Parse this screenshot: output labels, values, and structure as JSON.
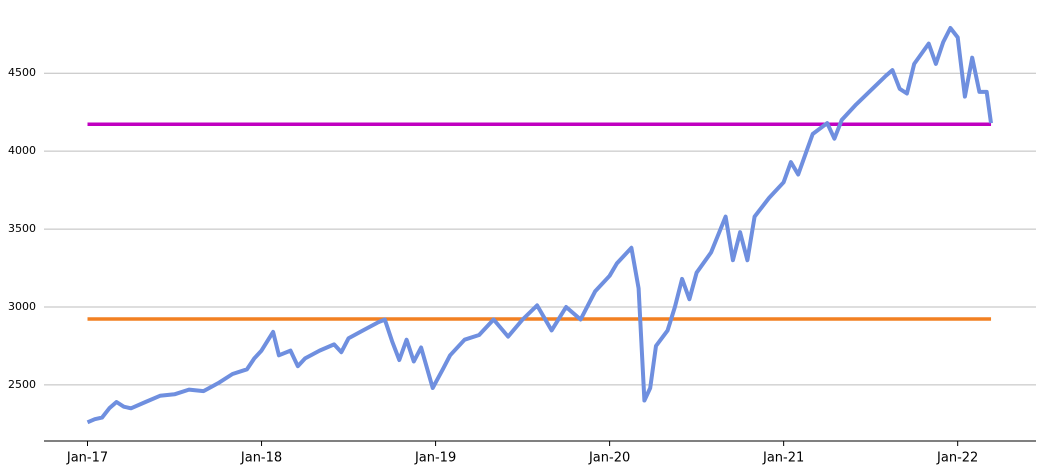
{
  "chart_data": {
    "type": "line",
    "x": [
      0,
      0.5,
      1,
      1.5,
      2,
      2.5,
      3,
      4,
      5,
      6,
      7,
      8,
      9,
      10,
      11,
      11.5,
      12,
      12.8,
      13.2,
      14,
      14.5,
      15,
      16,
      17,
      17.5,
      18,
      19,
      20,
      20.5,
      21,
      21.5,
      22,
      22.5,
      23,
      23.8,
      24.5,
      25,
      26,
      27,
      28,
      29,
      30,
      31,
      32,
      33,
      34,
      35,
      36,
      36.5,
      37.5,
      38,
      38.4,
      38.8,
      39.2,
      40,
      40.5,
      41,
      41.5,
      42,
      43,
      44,
      44.5,
      45,
      45.5,
      46,
      47,
      48,
      48.5,
      49,
      49.5,
      50,
      51,
      51.5,
      52,
      53,
      54,
      55,
      55.5,
      56,
      56.5,
      57,
      58,
      58.5,
      59,
      59.5,
      60,
      60.5,
      61,
      61.5,
      62,
      62.3
    ],
    "series": [
      {
        "color": "#6f8fdf",
        "values": [
          2260,
          2280,
          2290,
          2350,
          2390,
          2360,
          2350,
          2390,
          2430,
          2440,
          2470,
          2460,
          2510,
          2570,
          2600,
          2670,
          2720,
          2840,
          2690,
          2720,
          2620,
          2670,
          2720,
          2760,
          2710,
          2800,
          2850,
          2900,
          2920,
          2780,
          2660,
          2790,
          2650,
          2740,
          2480,
          2600,
          2690,
          2790,
          2820,
          2920,
          2810,
          2920,
          3010,
          2850,
          3000,
          2920,
          3100,
          3200,
          3280,
          3380,
          3120,
          2400,
          2480,
          2750,
          2850,
          3000,
          3180,
          3050,
          3220,
          3350,
          3580,
          3300,
          3480,
          3300,
          3580,
          3700,
          3800,
          3930,
          3850,
          3980,
          4110,
          4180,
          4080,
          4200,
          4300,
          4390,
          4480,
          4520,
          4400,
          4370,
          4560,
          4690,
          4560,
          4700,
          4790,
          4730,
          4350,
          4600,
          4380,
          4380,
          4180
        ]
      }
    ],
    "reference_lines": [
      {
        "value": 4173,
        "color": "#c000c0"
      },
      {
        "value": 2923,
        "color": "#f28022"
      }
    ],
    "xlim": [
      -3,
      65.4
    ],
    "xticks": [
      {
        "value": 0,
        "label": "Jan-17"
      },
      {
        "value": 12,
        "label": "Jan-18"
      },
      {
        "value": 24,
        "label": "Jan-19"
      },
      {
        "value": 36,
        "label": "Jan-20"
      },
      {
        "value": 48,
        "label": "Jan-21"
      },
      {
        "value": 60,
        "label": "Jan-22"
      }
    ],
    "ylim": [
      2140,
      4970
    ],
    "yticks": [
      2500,
      3000,
      3500,
      4000,
      4500
    ],
    "grid": true
  }
}
